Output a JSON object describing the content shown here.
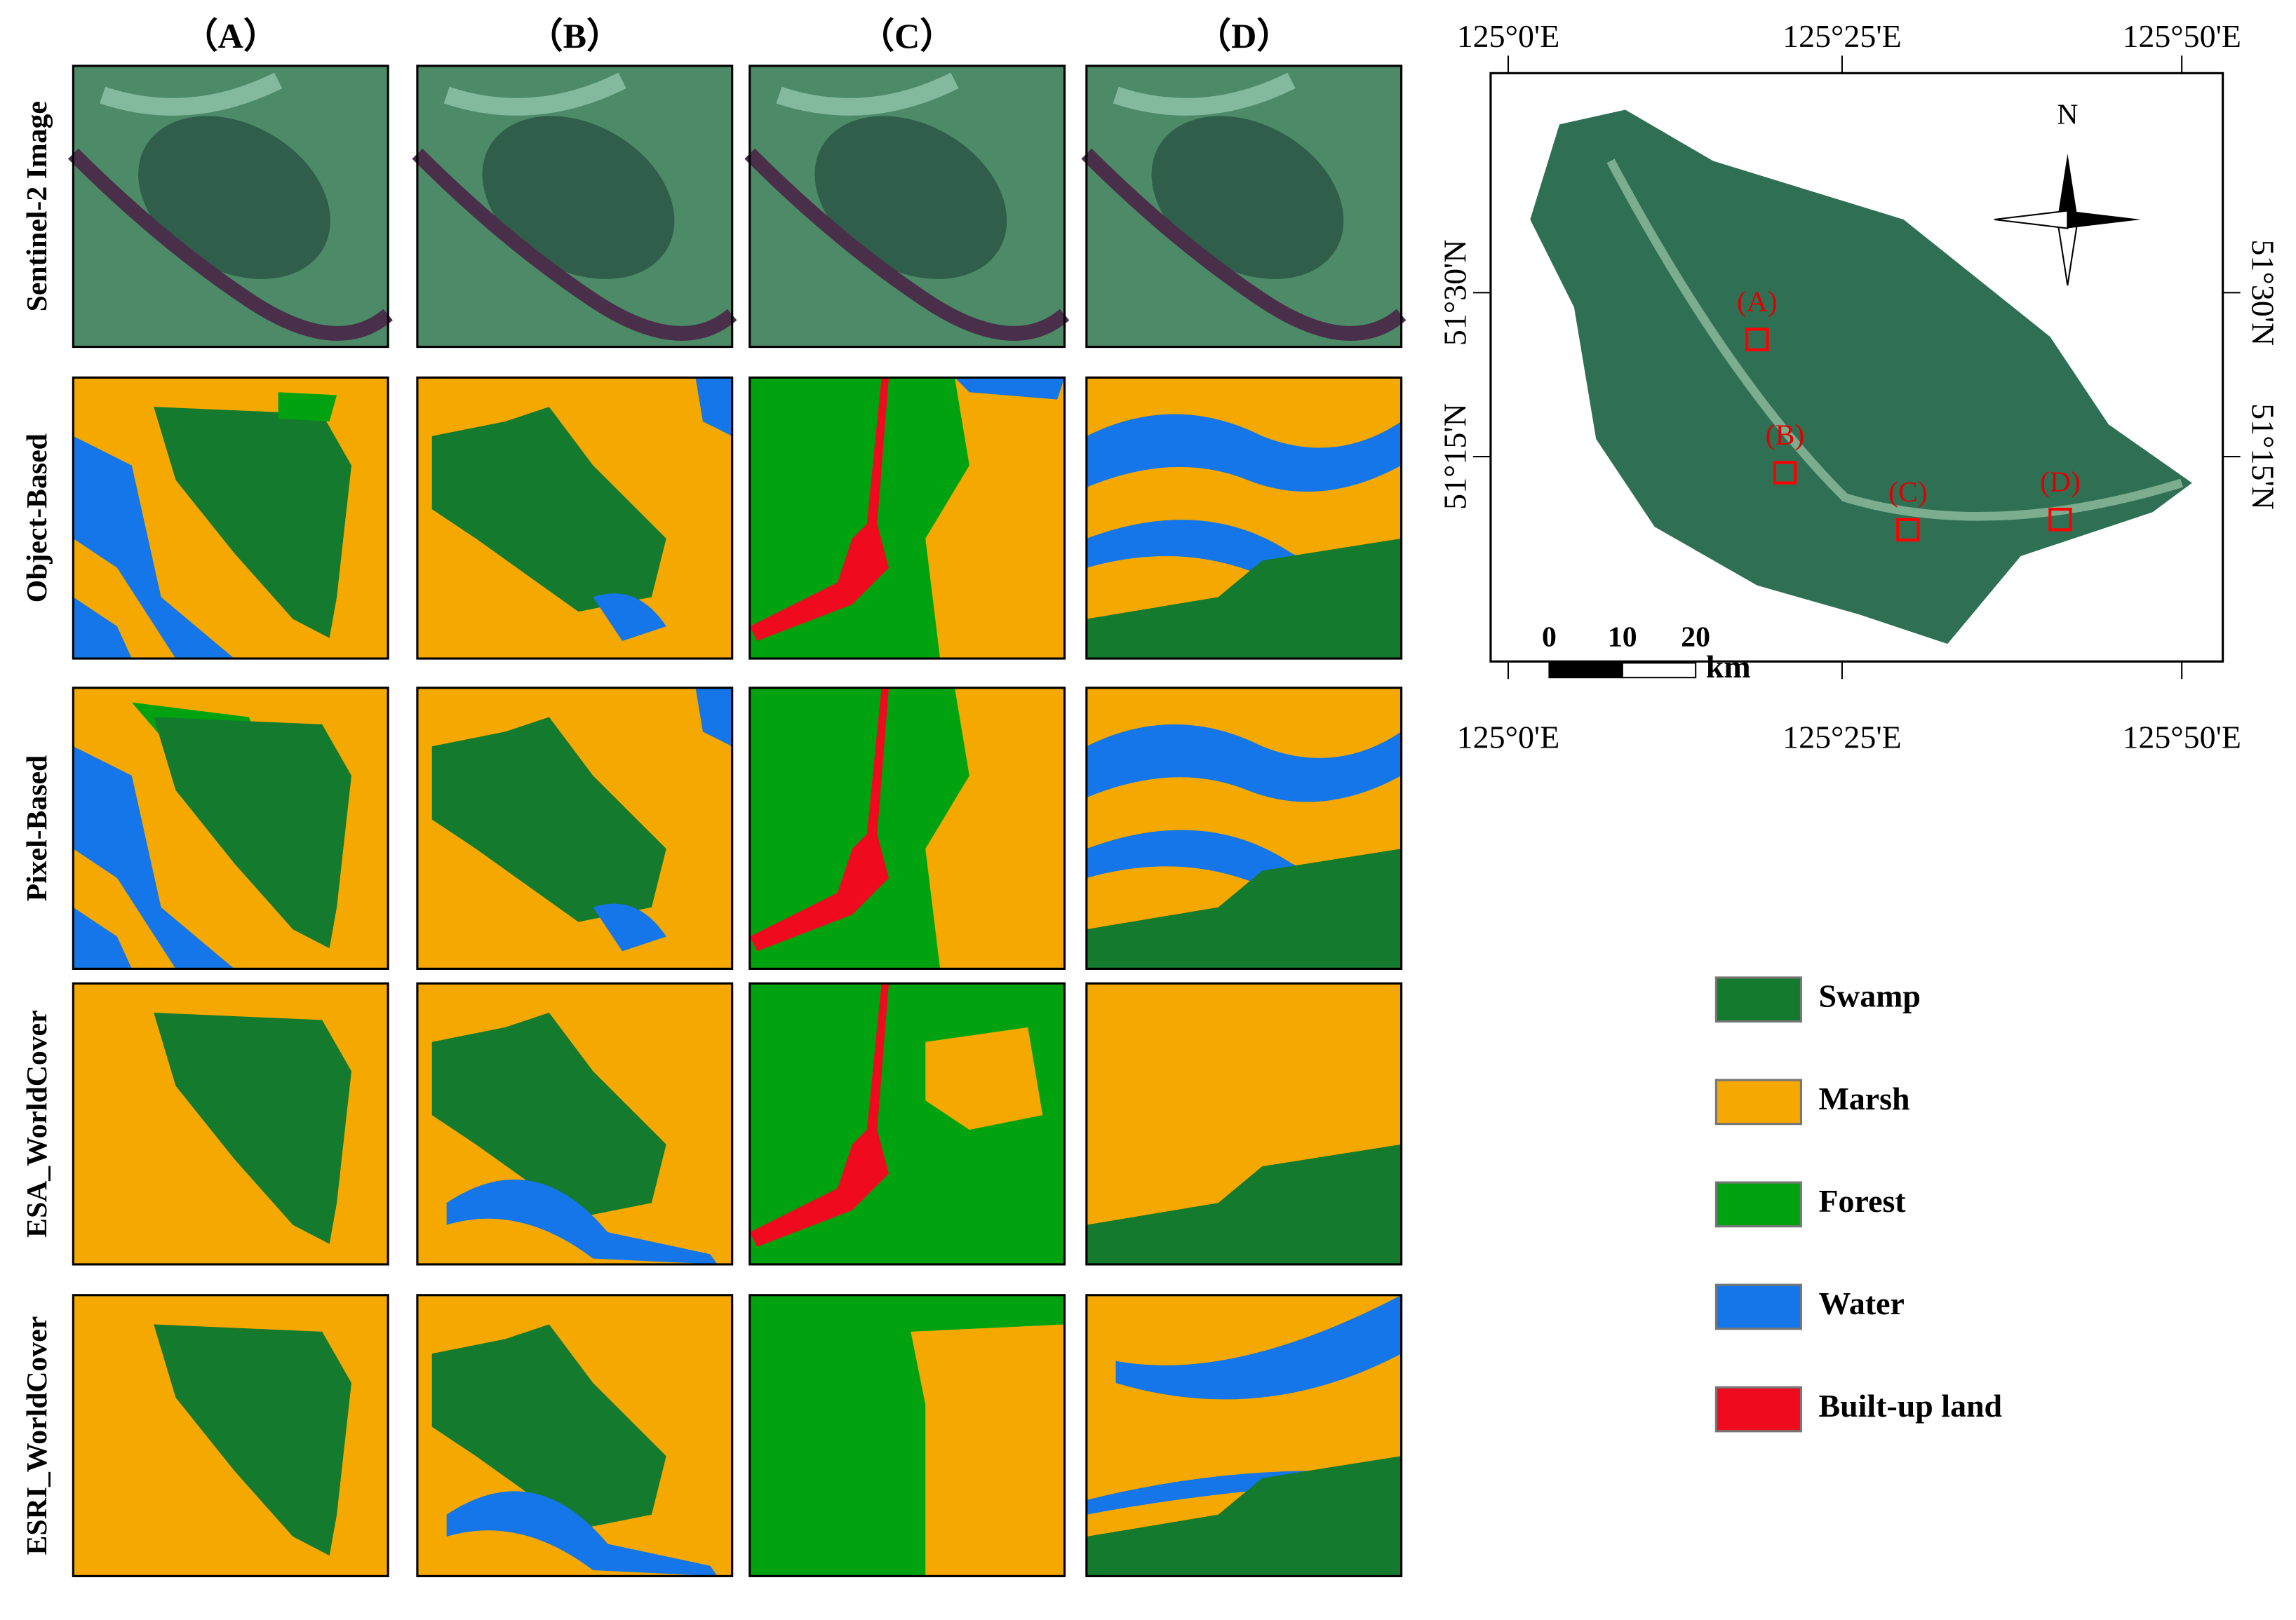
{
  "columns": [
    "（A）",
    "（B）",
    "（C）",
    "（D）"
  ],
  "rows": [
    "Sentinel-2 Image",
    "Object-Based",
    "Pixel-Based",
    "ESA_WorldCover",
    "ESRI_WorldCover"
  ],
  "map": {
    "lon_labels": [
      "125°0'E",
      "125°25'E",
      "125°50'E"
    ],
    "lat_labels": [
      "51°30'N",
      "51°15'N"
    ],
    "north": "N",
    "sites": [
      "(A)",
      "(B)",
      "(C)",
      "(D)"
    ],
    "scale_bar": {
      "ticks": [
        "0",
        "10",
        "20"
      ],
      "unit": "km"
    }
  },
  "legend": [
    {
      "name": "Swamp",
      "color": "#137a2e"
    },
    {
      "name": "Marsh",
      "color": "#f5a800"
    },
    {
      "name": "Forest",
      "color": "#00a30f"
    },
    {
      "name": "Water",
      "color": "#1476e8"
    },
    {
      "name": "Built-up land",
      "color": "#f00a1e"
    }
  ]
}
